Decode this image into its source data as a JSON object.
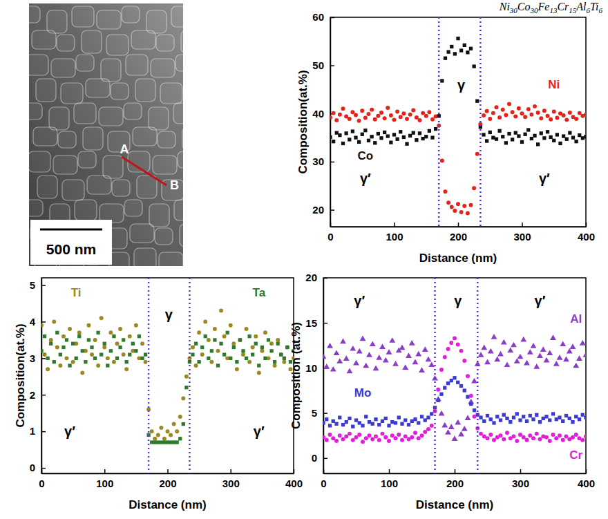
{
  "figure": {
    "title": "Ni30Co30Fe13Cr15Al6Ti6"
  },
  "micrograph": {
    "point_labels": [
      "A",
      "B"
    ],
    "scale_bar": "500 nm"
  },
  "chart_data": [
    {
      "type": "scatter",
      "x": [
        0,
        5,
        10,
        15,
        20,
        25,
        30,
        35,
        40,
        45,
        50,
        55,
        60,
        65,
        70,
        75,
        80,
        85,
        90,
        95,
        100,
        105,
        110,
        115,
        120,
        125,
        130,
        135,
        140,
        145,
        150,
        155,
        160,
        165,
        170,
        175,
        180,
        185,
        190,
        195,
        200,
        205,
        210,
        215,
        220,
        225,
        230,
        235,
        240,
        245,
        250,
        255,
        260,
        265,
        270,
        275,
        280,
        285,
        290,
        295,
        300,
        305,
        310,
        315,
        320,
        325,
        330,
        335,
        340,
        345,
        350,
        355,
        360,
        365,
        370,
        375,
        380,
        385,
        390,
        395,
        400
      ],
      "xlim": [
        0,
        400
      ],
      "xticks": [
        0,
        100,
        200,
        300,
        400
      ],
      "ylim": [
        16.5,
        60
      ],
      "yticks": [
        20,
        30,
        40,
        50,
        60
      ],
      "xlabel": "Distance (nm)",
      "ylabel": "Composition(at.%)",
      "phase_boundaries": [
        170,
        235
      ],
      "annotations": [
        {
          "text": "γ′",
          "x": 55,
          "y": 26.5
        },
        {
          "text": "γ",
          "x": 205,
          "y": 46
        },
        {
          "text": "γ′",
          "x": 335,
          "y": 26.5
        }
      ],
      "series": [
        {
          "name": "Ni",
          "color": "#e3241b",
          "marker": "circle",
          "label_position": [
            350,
            46
          ],
          "values": [
            39.2,
            40.1,
            38.6,
            39.8,
            41.0,
            39.4,
            38.9,
            40.3,
            39.7,
            38.5,
            40.6,
            39.1,
            39.9,
            40.8,
            38.8,
            39.5,
            40.2,
            39.0,
            41.2,
            39.6,
            38.7,
            40.4,
            39.3,
            40.0,
            38.9,
            39.8,
            40.7,
            39.2,
            38.6,
            40.1,
            39.5,
            40.3,
            38.8,
            39.4,
            37.5,
            30.2,
            23.8,
            21.5,
            20.6,
            19.8,
            21.2,
            19.5,
            20.8,
            19.3,
            21.0,
            24.5,
            31.6,
            37.8,
            39.6,
            40.5,
            38.9,
            40.1,
            41.3,
            39.2,
            40.8,
            39.7,
            42.0,
            40.3,
            39.4,
            41.1,
            40.0,
            39.3,
            40.9,
            39.8,
            41.5,
            40.2,
            39.0,
            40.6,
            39.5,
            38.8,
            40.4,
            39.1,
            40.0,
            39.6,
            38.7,
            40.2,
            39.3,
            38.9,
            40.1,
            39.5,
            39.8
          ]
        },
        {
          "name": "Co",
          "color": "#111111",
          "marker": "square",
          "label_position": [
            55,
            31.2
          ],
          "values": [
            35.1,
            34.2,
            36.0,
            35.5,
            33.8,
            35.9,
            34.6,
            36.3,
            35.0,
            34.1,
            35.7,
            36.5,
            34.4,
            35.2,
            33.9,
            35.8,
            34.9,
            36.1,
            35.3,
            34.0,
            35.6,
            34.7,
            36.2,
            35.1,
            33.7,
            35.4,
            36.0,
            34.5,
            35.9,
            34.8,
            35.2,
            36.4,
            35.0,
            36.8,
            39.5,
            46.8,
            51.5,
            52.8,
            53.9,
            52.4,
            55.6,
            53.1,
            54.2,
            52.7,
            53.5,
            49.8,
            42.6,
            37.2,
            35.6,
            34.3,
            36.1,
            35.0,
            34.7,
            36.4,
            35.2,
            33.9,
            35.8,
            34.6,
            36.0,
            35.3,
            34.1,
            35.7,
            36.6,
            34.8,
            35.4,
            33.6,
            35.9,
            34.9,
            36.2,
            35.1,
            34.4,
            35.6,
            33.8,
            35.3,
            34.7,
            36.0,
            35.0,
            34.2,
            35.5,
            34.9,
            35.2
          ]
        }
      ]
    },
    {
      "type": "scatter",
      "x": [
        0,
        5,
        10,
        15,
        20,
        25,
        30,
        35,
        40,
        45,
        50,
        55,
        60,
        65,
        70,
        75,
        80,
        85,
        90,
        95,
        100,
        105,
        110,
        115,
        120,
        125,
        130,
        135,
        140,
        145,
        150,
        155,
        160,
        165,
        170,
        175,
        180,
        185,
        190,
        195,
        200,
        205,
        210,
        215,
        220,
        225,
        230,
        235,
        240,
        245,
        250,
        255,
        260,
        265,
        270,
        275,
        280,
        285,
        290,
        295,
        300,
        305,
        310,
        315,
        320,
        325,
        330,
        335,
        340,
        345,
        350,
        355,
        360,
        365,
        370,
        375,
        380,
        385,
        390,
        395,
        400
      ],
      "xlim": [
        0,
        400
      ],
      "xticks": [
        0,
        100,
        200,
        300,
        400
      ],
      "ylim": [
        -0.15,
        5.2
      ],
      "yticks": [
        0,
        1,
        2,
        3,
        4,
        5
      ],
      "xlabel": "Distance (nm)",
      "ylabel": "Composition(at.%)",
      "phase_boundaries": [
        170,
        235
      ],
      "annotations": [
        {
          "text": "γ",
          "x": 202,
          "y": 4.2
        },
        {
          "text": "γ′",
          "x": 45,
          "y": 1.0
        },
        {
          "text": "γ′",
          "x": 345,
          "y": 1.0
        }
      ],
      "series": [
        {
          "name": "Ti",
          "color": "#9a8a22",
          "marker": "circle",
          "label_position": [
            55,
            4.8
          ],
          "values": [
            3.9,
            3.1,
            2.7,
            3.5,
            4.0,
            3.3,
            2.8,
            3.6,
            3.0,
            3.8,
            2.9,
            3.4,
            3.7,
            2.6,
            3.2,
            3.9,
            3.1,
            3.5,
            2.8,
            4.1,
            3.3,
            3.0,
            3.7,
            2.9,
            3.4,
            3.8,
            3.1,
            2.7,
            3.6,
            3.2,
            3.9,
            3.0,
            3.4,
            2.9,
            1.6,
            1.0,
            0.8,
            0.9,
            1.1,
            0.8,
            1.0,
            0.9,
            1.2,
            1.0,
            1.4,
            1.9,
            2.5,
            3.0,
            3.3,
            2.8,
            3.7,
            3.1,
            4.0,
            3.5,
            2.9,
            3.8,
            3.2,
            4.3,
            3.6,
            3.0,
            3.9,
            3.4,
            2.7,
            3.5,
            3.1,
            3.8,
            2.9,
            3.3,
            3.6,
            2.6,
            3.2,
            3.7,
            3.0,
            3.4,
            2.8,
            3.5,
            3.1,
            2.9,
            3.3,
            2.7,
            3.0
          ]
        },
        {
          "name": "Ta",
          "color": "#2e7a2e",
          "marker": "square",
          "label_position": [
            345,
            4.8
          ],
          "values": [
            3.2,
            3.6,
            3.0,
            3.4,
            2.9,
            3.7,
            3.1,
            3.3,
            3.5,
            2.8,
            3.4,
            3.0,
            3.6,
            3.2,
            2.9,
            3.5,
            3.3,
            3.0,
            3.7,
            3.1,
            3.4,
            2.8,
            3.2,
            3.6,
            3.0,
            3.3,
            3.5,
            2.9,
            3.1,
            3.4,
            3.2,
            3.6,
            3.0,
            3.1,
            0.9,
            0.7,
            0.7,
            0.7,
            0.7,
            0.7,
            0.7,
            0.7,
            0.7,
            0.7,
            0.8,
            1.2,
            2.2,
            2.9,
            3.1,
            3.4,
            2.9,
            3.3,
            3.6,
            3.0,
            3.2,
            3.5,
            2.8,
            3.4,
            3.1,
            3.7,
            3.0,
            3.3,
            2.9,
            3.5,
            3.2,
            3.0,
            3.6,
            3.1,
            3.4,
            2.8,
            3.3,
            3.0,
            3.5,
            3.2,
            2.9,
            3.4,
            3.1,
            3.0,
            3.3,
            2.9,
            3.2
          ]
        }
      ]
    },
    {
      "type": "scatter",
      "x": [
        0,
        5,
        10,
        15,
        20,
        25,
        30,
        35,
        40,
        45,
        50,
        55,
        60,
        65,
        70,
        75,
        80,
        85,
        90,
        95,
        100,
        105,
        110,
        115,
        120,
        125,
        130,
        135,
        140,
        145,
        150,
        155,
        160,
        165,
        170,
        175,
        180,
        185,
        190,
        195,
        200,
        205,
        210,
        215,
        220,
        225,
        230,
        235,
        240,
        245,
        250,
        255,
        260,
        265,
        270,
        275,
        280,
        285,
        290,
        295,
        300,
        305,
        310,
        315,
        320,
        325,
        330,
        335,
        340,
        345,
        350,
        355,
        360,
        365,
        370,
        375,
        380,
        385,
        390,
        395,
        400
      ],
      "xlim": [
        0,
        400
      ],
      "xticks": [
        0,
        100,
        200,
        300,
        400
      ],
      "ylim": [
        -1.7,
        20
      ],
      "yticks": [
        0,
        5,
        10,
        15,
        20
      ],
      "xlabel": "Distance (nm)",
      "ylabel": "Composition (at.%)",
      "phase_boundaries": [
        170,
        235
      ],
      "annotations": [
        {
          "text": "γ′",
          "x": 55,
          "y": 17.5
        },
        {
          "text": "γ",
          "x": 205,
          "y": 17.5
        },
        {
          "text": "γ′",
          "x": 330,
          "y": 17.5
        }
      ],
      "series": [
        {
          "name": "Al",
          "color": "#8a3ec8",
          "marker": "triangle",
          "label_position": [
            385,
            15.4
          ],
          "values": [
            11.2,
            10.1,
            12.4,
            9.8,
            11.6,
            10.7,
            12.9,
            11.0,
            9.6,
            12.1,
            10.5,
            11.8,
            13.2,
            10.2,
            11.4,
            12.6,
            9.9,
            11.1,
            12.3,
            10.8,
            11.7,
            13.0,
            10.4,
            11.9,
            12.2,
            10.0,
            11.3,
            12.7,
            10.6,
            11.5,
            9.7,
            12.0,
            10.9,
            10.3,
            8.8,
            6.5,
            4.9,
            3.6,
            2.8,
            3.4,
            2.1,
            3.9,
            2.6,
            3.2,
            4.4,
            6.2,
            8.5,
            10.4,
            11.4,
            12.2,
            10.6,
            11.8,
            13.4,
            10.9,
            11.5,
            12.8,
            10.3,
            11.9,
            12.5,
            10.7,
            11.2,
            13.1,
            10.5,
            11.7,
            12.4,
            10.1,
            11.3,
            12.0,
            10.8,
            11.6,
            13.3,
            10.4,
            11.1,
            12.6,
            10.9,
            11.8,
            12.3,
            10.2,
            11.0,
            12.7,
            11.4
          ]
        },
        {
          "name": "Mo",
          "color": "#3a3ad0",
          "marker": "square",
          "label_position": [
            60,
            7.2
          ],
          "values": [
            3.9,
            4.3,
            3.6,
            4.1,
            3.8,
            4.5,
            3.7,
            4.0,
            4.4,
            3.5,
            4.2,
            3.9,
            3.6,
            4.6,
            4.0,
            3.8,
            4.3,
            3.7,
            4.1,
            4.4,
            3.6,
            4.0,
            3.9,
            4.5,
            3.8,
            4.2,
            3.7,
            4.1,
            4.3,
            3.9,
            4.6,
            4.2,
            4.5,
            4.9,
            5.6,
            6.4,
            7.1,
            7.8,
            8.3,
            8.6,
            8.9,
            8.4,
            8.0,
            7.5,
            6.8,
            6.0,
            5.3,
            4.8,
            4.5,
            4.1,
            4.7,
            4.3,
            3.9,
            4.6,
            4.2,
            4.8,
            4.4,
            4.0,
            4.5,
            4.9,
            4.2,
            4.6,
            4.1,
            4.7,
            4.3,
            4.8,
            4.0,
            4.4,
            4.6,
            4.2,
            4.9,
            4.3,
            4.5,
            4.1,
            4.7,
            4.4,
            4.0,
            4.6,
            4.3,
            4.8,
            4.5
          ]
        },
        {
          "name": "Cr",
          "color": "#e020d8",
          "marker": "circle",
          "label_position": [
            385,
            0.3
          ],
          "values": [
            2.3,
            2.0,
            2.6,
            2.2,
            1.9,
            2.5,
            2.1,
            2.4,
            2.7,
            2.0,
            2.3,
            2.6,
            1.8,
            2.2,
            2.5,
            2.1,
            2.4,
            2.0,
            2.7,
            2.3,
            1.9,
            2.5,
            2.2,
            2.6,
            2.0,
            2.4,
            2.1,
            2.3,
            2.8,
            2.2,
            2.5,
            2.9,
            3.2,
            3.6,
            5.2,
            7.6,
            9.8,
            11.2,
            12.1,
            12.8,
            13.3,
            12.6,
            11.9,
            10.8,
            9.1,
            6.9,
            4.6,
            3.3,
            2.7,
            2.4,
            2.2,
            2.6,
            2.0,
            2.3,
            2.5,
            2.1,
            2.8,
            2.2,
            2.4,
            1.9,
            2.6,
            2.3,
            2.0,
            2.5,
            2.2,
            2.7,
            2.1,
            2.4,
            2.3,
            1.9,
            2.6,
            2.2,
            2.5,
            2.0,
            2.4,
            2.1,
            2.3,
            2.6,
            2.2,
            2.0,
            2.4
          ]
        }
      ]
    }
  ]
}
